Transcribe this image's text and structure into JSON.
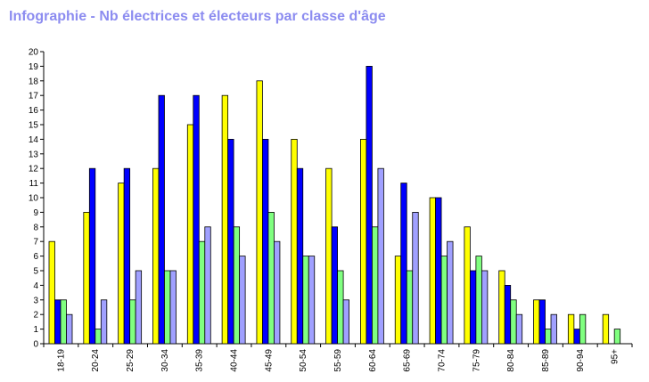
{
  "chart_data": {
    "type": "bar",
    "title": "Infographie - Nb électrices et électeurs par classe d'âge",
    "xlabel": "",
    "ylabel": "",
    "ylim": [
      0,
      20
    ],
    "yticks": [
      0,
      1,
      2,
      3,
      4,
      5,
      6,
      7,
      8,
      9,
      10,
      11,
      12,
      13,
      14,
      15,
      16,
      17,
      18,
      19,
      20
    ],
    "grid": false,
    "legend": "none",
    "categories": [
      "18-19",
      "20-24",
      "25-29",
      "30-34",
      "35-39",
      "40-44",
      "45-49",
      "50-54",
      "55-59",
      "60-64",
      "65-69",
      "70-74",
      "75-79",
      "80-84",
      "85-89",
      "90-94",
      "95+"
    ],
    "series": [
      {
        "color": "#ffff00",
        "values": [
          7,
          9,
          11,
          12,
          15,
          17,
          18,
          14,
          12,
          14,
          6,
          10,
          8,
          5,
          3,
          2,
          2
        ]
      },
      {
        "color": "#0000ff",
        "values": [
          3,
          12,
          12,
          17,
          17,
          14,
          14,
          12,
          8,
          19,
          11,
          10,
          5,
          4,
          3,
          1,
          0
        ]
      },
      {
        "color": "#80ff80",
        "values": [
          3,
          1,
          3,
          5,
          7,
          8,
          9,
          6,
          5,
          8,
          5,
          6,
          6,
          3,
          1,
          2,
          1
        ]
      },
      {
        "color": "#a0a0ff",
        "values": [
          2,
          3,
          5,
          5,
          8,
          6,
          7,
          6,
          3,
          12,
          9,
          7,
          5,
          2,
          2,
          0,
          0
        ]
      }
    ]
  }
}
